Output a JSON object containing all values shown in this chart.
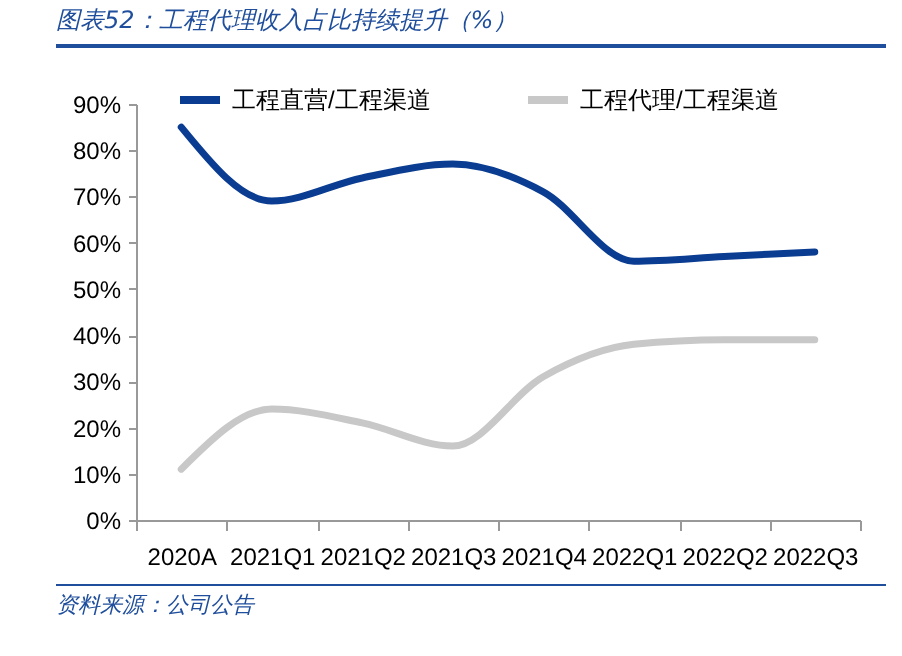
{
  "chart_data": {
    "type": "line",
    "title": "图表52：工程代理收入占比持续提升（%）",
    "annotations": [
      "资料来源：公司公告"
    ],
    "categories": [
      "2020A",
      "2021Q1",
      "2021Q2",
      "2021Q3",
      "2021Q4",
      "2022Q1",
      "2022Q2",
      "2022Q3"
    ],
    "series": [
      {
        "name": "工程直营/工程渠道",
        "color": "#0a3d91",
        "values": [
          85,
          69,
          74,
          77,
          71,
          56,
          57,
          58
        ]
      },
      {
        "name": "工程代理/工程渠道",
        "color": "#c8c8c8",
        "values": [
          11,
          24,
          21,
          16,
          31,
          38,
          39,
          39
        ]
      }
    ],
    "ylim": [
      0,
      90
    ],
    "yticks": [
      {
        "value": 0,
        "label": "0%"
      },
      {
        "value": 10,
        "label": "10%"
      },
      {
        "value": 20,
        "label": "20%"
      },
      {
        "value": 30,
        "label": "30%"
      },
      {
        "value": 40,
        "label": "40%"
      },
      {
        "value": 50,
        "label": "50%"
      },
      {
        "value": 60,
        "label": "60%"
      },
      {
        "value": 70,
        "label": "70%"
      },
      {
        "value": 80,
        "label": "80%"
      },
      {
        "value": 90,
        "label": "90%"
      }
    ],
    "legend": "top"
  }
}
